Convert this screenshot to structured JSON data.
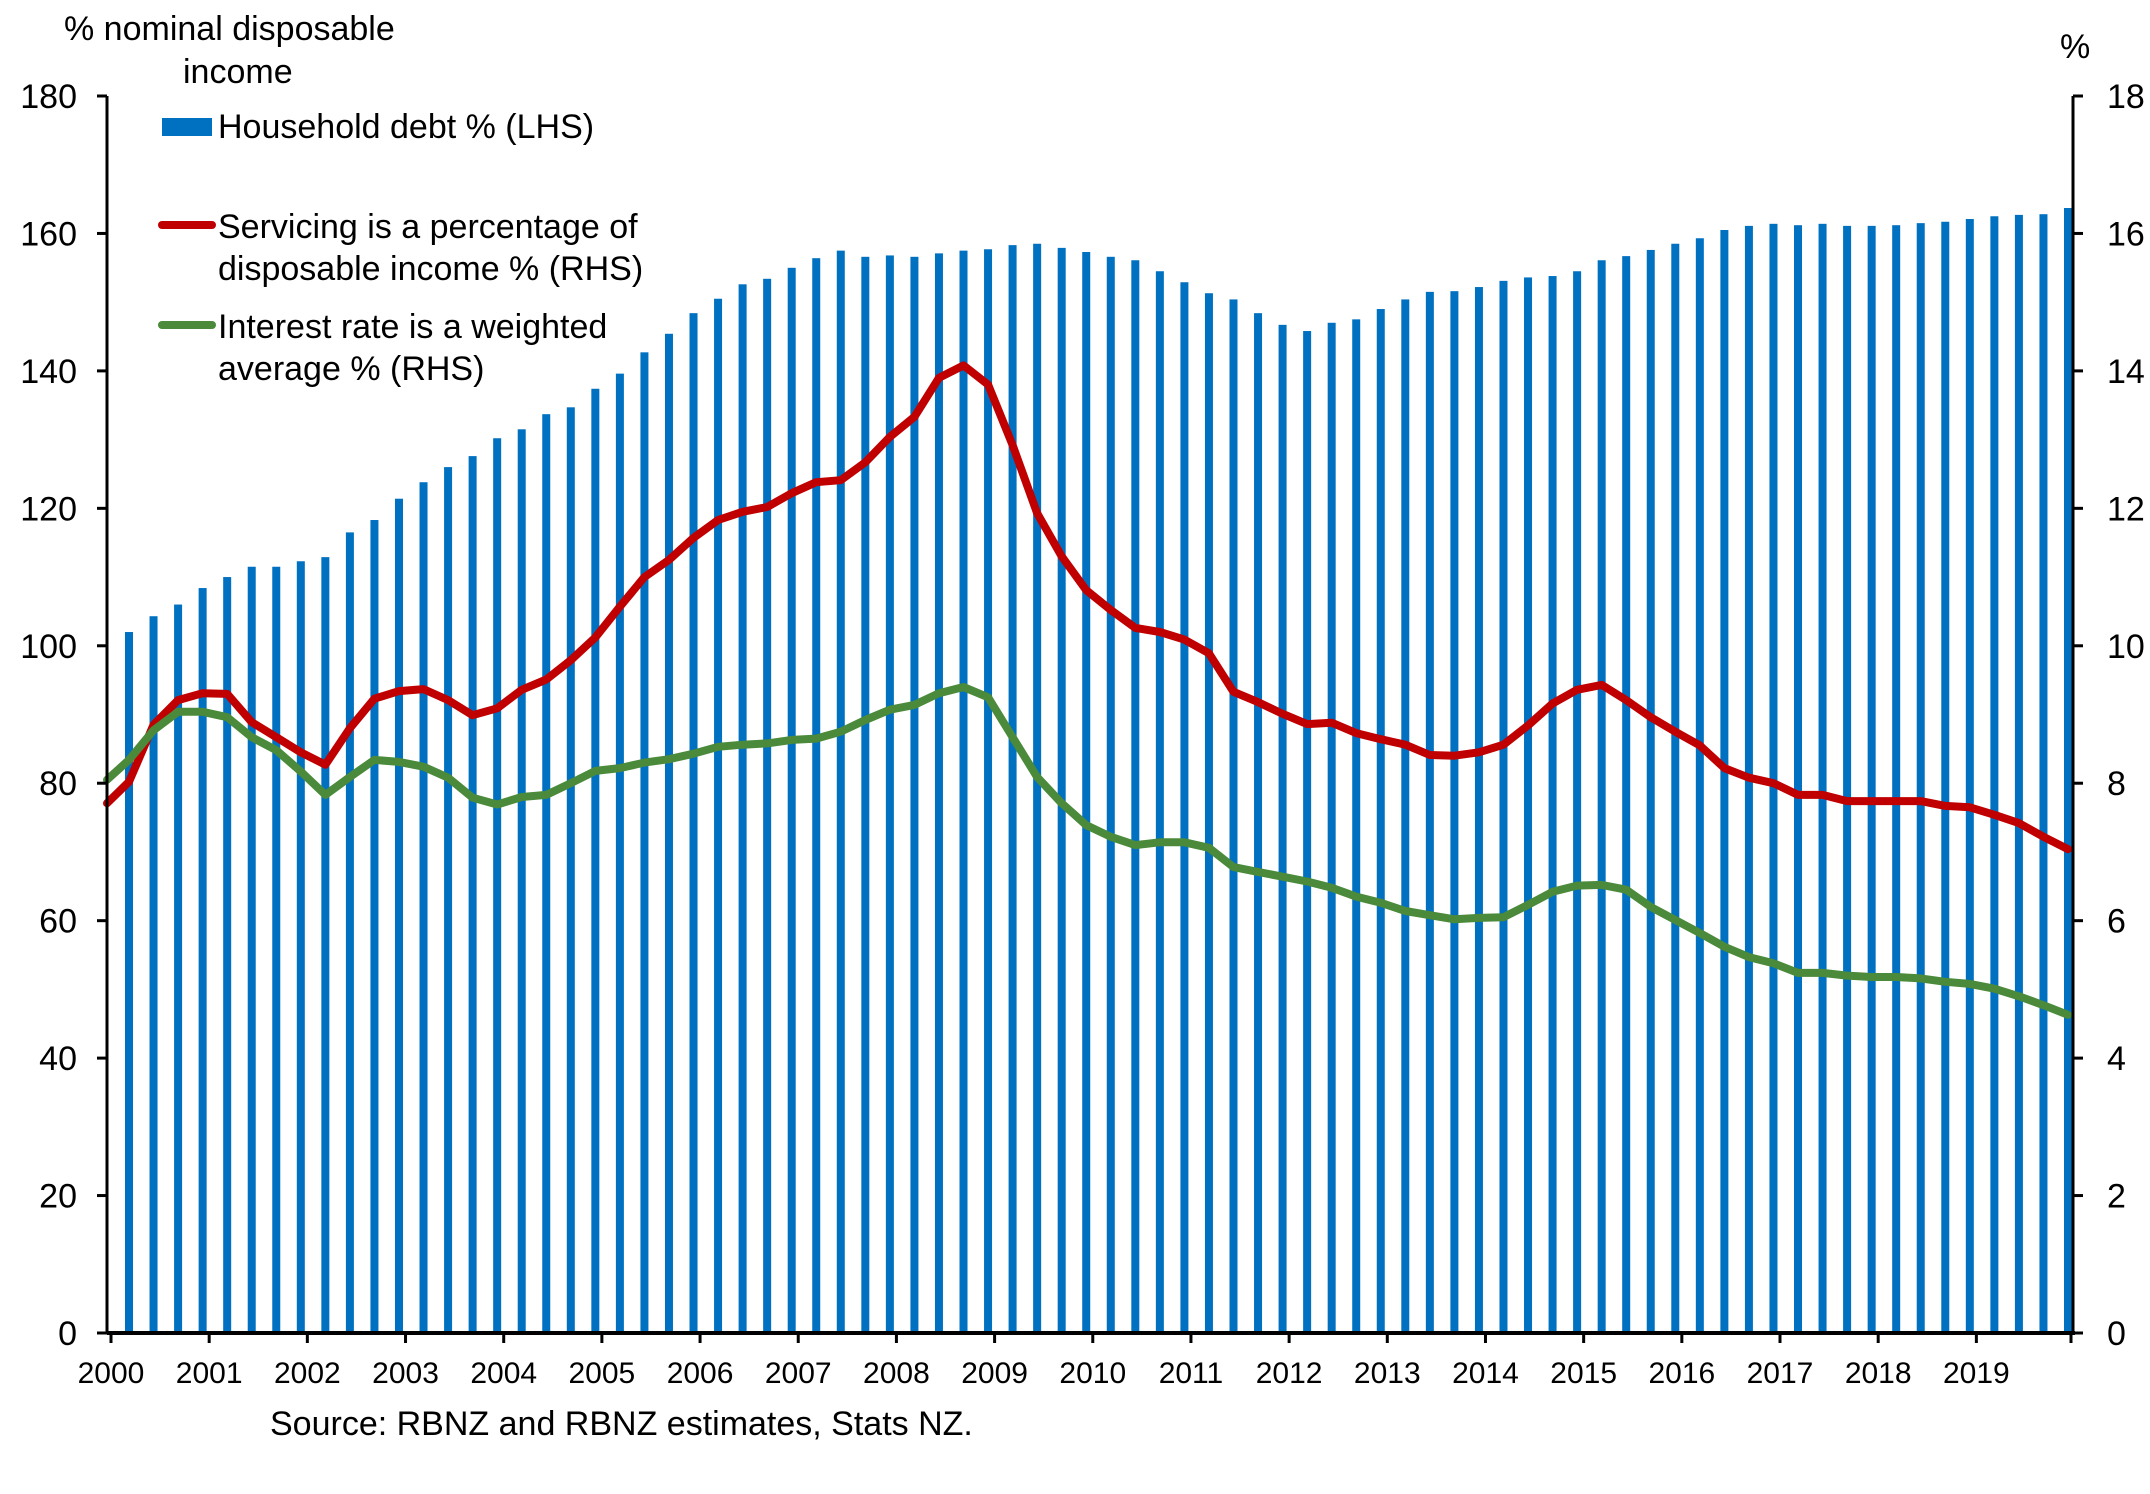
{
  "chart_data": {
    "type": "bar+line",
    "title": "",
    "source": "Source: RBNZ and RBNZ estimates, Stats NZ.",
    "left_axis": {
      "title_line1": "% nominal disposable",
      "title_line2": "income",
      "range": [
        0,
        180
      ],
      "ticks": [
        0,
        20,
        40,
        60,
        80,
        100,
        120,
        140,
        160,
        180
      ]
    },
    "right_axis": {
      "title": "%",
      "range": [
        0,
        18
      ],
      "ticks": [
        0,
        2,
        4,
        6,
        8,
        10,
        12,
        14,
        16,
        18
      ]
    },
    "x_axis": {
      "tick_labels": [
        "2000",
        "2001",
        "2002",
        "2003",
        "2004",
        "2005",
        "2006",
        "2007",
        "2008",
        "2009",
        "2010",
        "2011",
        "2012",
        "2013",
        "2014",
        "2015",
        "2016",
        "2017",
        "2018",
        "2019"
      ],
      "frequency": "quarterly"
    },
    "legend": {
      "placement": "top-left",
      "items": [
        {
          "name": "Household debt % (LHS)",
          "line1": "Household debt % (LHS)",
          "line2": "",
          "kind": "bar",
          "color": "#0070C0"
        },
        {
          "name": "Servicing is a percentage of disposable income % (RHS)",
          "line1": "Servicing is a percentage of",
          "line2": "disposable income % (RHS)",
          "kind": "line",
          "color": "#C00000"
        },
        {
          "name": "Interest rate is a weighted average % (RHS)",
          "line1": "Interest rate is a weighted",
          "line2": "average % (RHS)",
          "kind": "line",
          "color": "#4A8A3A"
        }
      ]
    },
    "series": [
      {
        "name": "Household debt % (LHS)",
        "axis": "left",
        "kind": "bar",
        "color": "#0070C0",
        "values": [
          102,
          104.3,
          106,
          108.4,
          110,
          111.5,
          111.5,
          112.3,
          112.9,
          116.5,
          118.3,
          121.4,
          123.8,
          126.0,
          127.6,
          130.2,
          131.5,
          133.7,
          134.7,
          137.4,
          139.6,
          142.7,
          145.4,
          148.4,
          150.5,
          152.6,
          153.4,
          155.0,
          156.4,
          157.5,
          156.6,
          156.8,
          156.6,
          157.1,
          157.5,
          157.7,
          158.3,
          158.5,
          157.9,
          157.3,
          156.6,
          156.1,
          154.5,
          152.9,
          151.3,
          150.4,
          148.4,
          146.7,
          145.8,
          147.0,
          147.5,
          149.0,
          150.4,
          151.5,
          151.6,
          152.2,
          153.1,
          153.6,
          153.8,
          154.5,
          156.1,
          156.7,
          157.6,
          158.5,
          159.3,
          160.5,
          161.1,
          161.4,
          161.2,
          161.4,
          161.1,
          161.1,
          161.2,
          161.5,
          161.7,
          162.1,
          162.5,
          162.7,
          162.8,
          163.7
        ]
      },
      {
        "name": "Servicing is a percentage of disposable income % (RHS)",
        "axis": "right",
        "kind": "line",
        "color": "#C00000",
        "start_value": 7.71,
        "values": [
          8.02,
          8.85,
          9.21,
          9.31,
          9.3,
          8.89,
          8.67,
          8.45,
          8.27,
          8.8,
          9.23,
          9.34,
          9.37,
          9.21,
          8.99,
          9.09,
          9.36,
          9.51,
          9.79,
          10.12,
          10.57,
          11.0,
          11.25,
          11.57,
          11.83,
          11.95,
          12.02,
          12.22,
          12.38,
          12.41,
          12.67,
          13.04,
          13.33,
          13.9,
          14.08,
          13.8,
          12.92,
          11.93,
          11.3,
          10.81,
          10.52,
          10.26,
          10.2,
          10.09,
          9.89,
          9.33,
          9.18,
          9.01,
          8.86,
          8.88,
          8.73,
          8.64,
          8.56,
          8.41,
          8.4,
          8.45,
          8.56,
          8.84,
          9.16,
          9.36,
          9.43,
          9.21,
          8.96,
          8.75,
          8.55,
          8.22,
          8.08,
          8.0,
          7.83,
          7.83,
          7.74,
          7.74,
          7.74,
          7.74,
          7.67,
          7.65,
          7.54,
          7.42,
          7.22,
          7.04
        ]
      },
      {
        "name": "Interest rate is a weighted average % (RHS)",
        "axis": "right",
        "kind": "line",
        "color": "#4A8A3A",
        "start_value": 8.05,
        "values": [
          8.34,
          8.77,
          9.04,
          9.04,
          8.96,
          8.67,
          8.48,
          8.17,
          7.83,
          8.09,
          8.34,
          8.31,
          8.24,
          8.08,
          7.79,
          7.69,
          7.8,
          7.83,
          8.0,
          8.18,
          8.22,
          8.3,
          8.35,
          8.43,
          8.53,
          8.56,
          8.58,
          8.63,
          8.65,
          8.75,
          8.92,
          9.07,
          9.14,
          9.31,
          9.4,
          9.25,
          8.67,
          8.09,
          7.71,
          7.39,
          7.22,
          7.1,
          7.14,
          7.14,
          7.06,
          6.78,
          6.71,
          6.64,
          6.57,
          6.48,
          6.35,
          6.26,
          6.14,
          6.08,
          6.02,
          6.04,
          6.05,
          6.23,
          6.42,
          6.51,
          6.52,
          6.45,
          6.2,
          6.01,
          5.82,
          5.62,
          5.47,
          5.38,
          5.24,
          5.24,
          5.2,
          5.18,
          5.18,
          5.16,
          5.11,
          5.08,
          5.01,
          4.9,
          4.77,
          4.63
        ]
      }
    ],
    "grid": false
  }
}
